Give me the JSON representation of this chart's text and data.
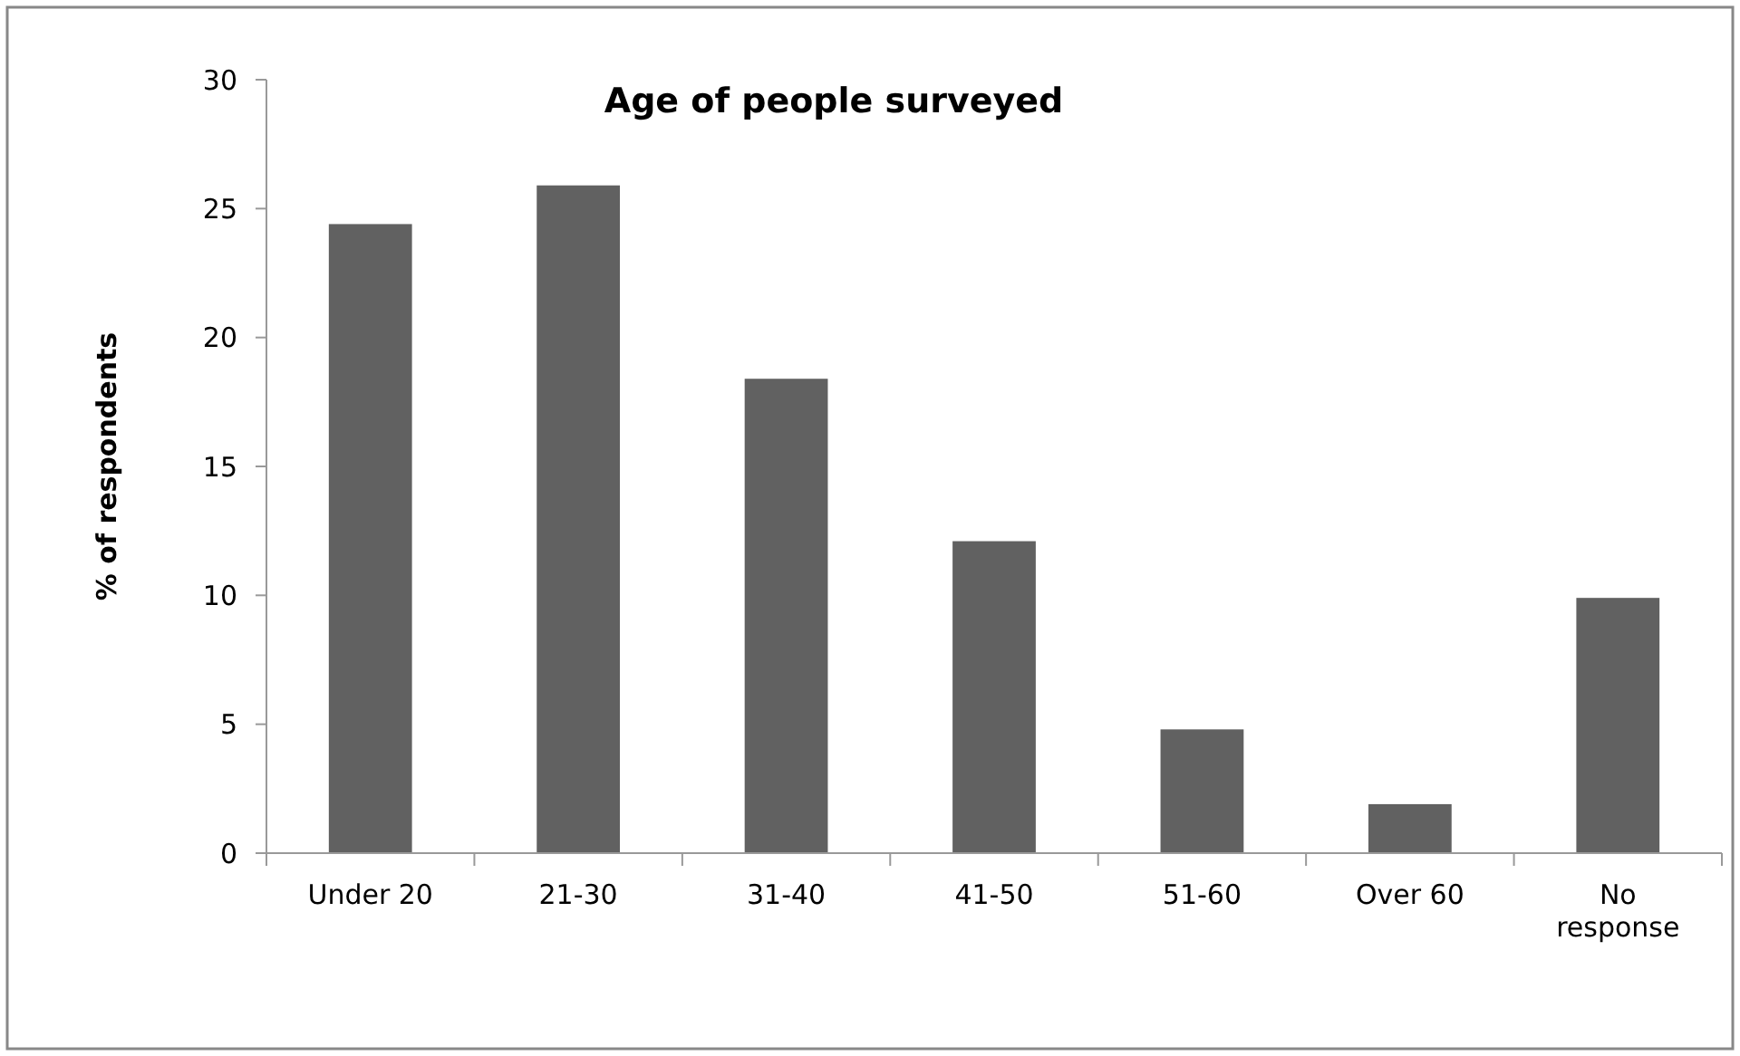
{
  "chart_data": {
    "type": "bar",
    "title": "Age of people surveyed",
    "ylabel": "% of respondents",
    "categories": [
      "Under 20",
      "21-30",
      "31-40",
      "41-50",
      "51-60",
      "Over 60",
      "No response"
    ],
    "values": [
      24.4,
      25.9,
      18.4,
      12.1,
      4.8,
      1.9,
      9.9
    ],
    "color": "#616161",
    "ylim": [
      0,
      30
    ],
    "yticks": [
      0,
      5,
      10,
      15,
      20,
      25,
      30
    ]
  }
}
